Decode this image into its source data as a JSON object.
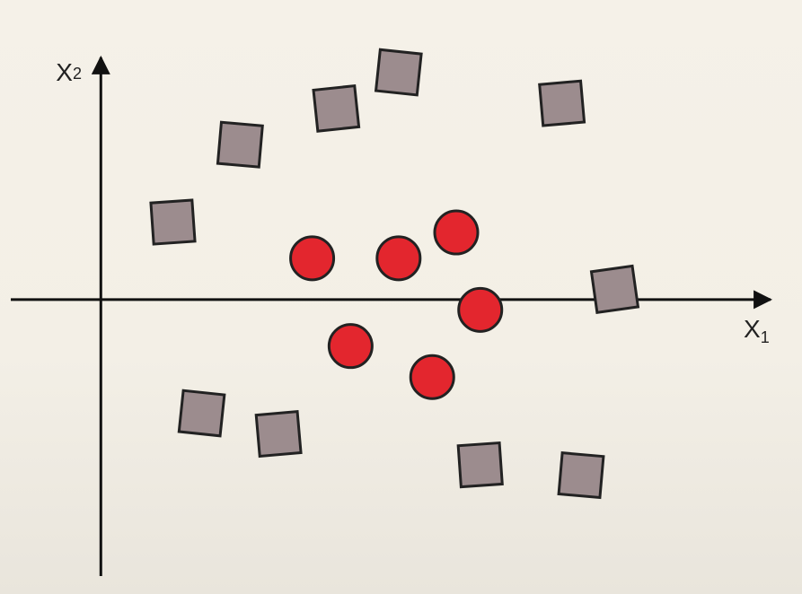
{
  "chart_data": {
    "type": "scatter",
    "title": "",
    "xlabel": "X",
    "xlabel_sub": "1",
    "ylabel": "X",
    "ylabel_sub": "2",
    "xlim": [
      -1.05,
      7.3
    ],
    "ylim": [
      -2.85,
      2.9
    ],
    "grid": false,
    "series": [
      {
        "marker": "square",
        "color": "#9c8c8e",
        "points": [
          {
            "x": 0.75,
            "y": 0.75
          },
          {
            "x": 1.45,
            "y": 1.5
          },
          {
            "x": 2.45,
            "y": 1.85
          },
          {
            "x": 3.1,
            "y": 2.2
          },
          {
            "x": 4.8,
            "y": 1.9
          },
          {
            "x": 5.35,
            "y": 0.1
          },
          {
            "x": 1.05,
            "y": -1.1
          },
          {
            "x": 1.85,
            "y": -1.3
          },
          {
            "x": 3.95,
            "y": -1.6
          },
          {
            "x": 5.0,
            "y": -1.7
          }
        ]
      },
      {
        "marker": "circle",
        "color": "#e3262e",
        "points": [
          {
            "x": 2.2,
            "y": 0.4
          },
          {
            "x": 3.1,
            "y": 0.4
          },
          {
            "x": 3.7,
            "y": 0.65
          },
          {
            "x": 3.95,
            "y": -0.1
          },
          {
            "x": 2.6,
            "y": -0.45
          },
          {
            "x": 3.45,
            "y": -0.75
          }
        ]
      }
    ]
  }
}
